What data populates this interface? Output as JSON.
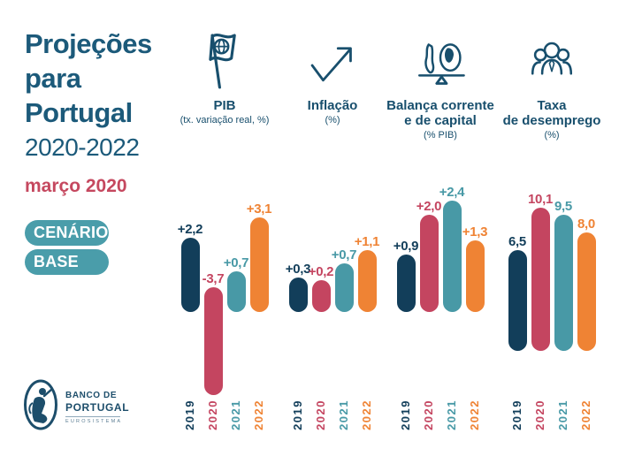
{
  "palette": {
    "navy": "#123e5a",
    "crimson": "#c44560",
    "teal": "#4899a6",
    "orange": "#ef8334",
    "title_blue": "#1c5a7a",
    "header_navy": "#184f6d",
    "accent_red": "#c5485f",
    "pill_teal": "#4a9daa",
    "logo_navy": "#1d4e6b",
    "background": "#ffffff"
  },
  "sidebar": {
    "title_lines": [
      "Projeções",
      "para",
      "Portugal"
    ],
    "period": "2020-2022",
    "date": "março 2020",
    "scenario_pills": [
      "CENÁRIO",
      "BASE"
    ],
    "logo": {
      "line1": "BANCO DE",
      "line2": "PORTUGAL",
      "line3": "EUROSISTEMA"
    }
  },
  "years": [
    "2019",
    "2020",
    "2021",
    "2022"
  ],
  "year_color_keys": [
    "navy",
    "crimson",
    "teal",
    "orange"
  ],
  "chart_data": [
    {
      "type": "bar",
      "title_lines": [
        "PIB"
      ],
      "subtitle": "(tx. variação real, %)",
      "icon": "flag-icon",
      "categories": [
        "2019",
        "2020",
        "2021",
        "2022"
      ],
      "values": [
        2.2,
        -3.7,
        0.7,
        3.1
      ],
      "display_values": [
        "+2,2",
        "-3,7",
        "+0,7",
        "+3,1"
      ]
    },
    {
      "type": "bar",
      "title_lines": [
        "Inflação"
      ],
      "subtitle": "(%)",
      "icon": "growth-arrow-icon",
      "categories": [
        "2019",
        "2020",
        "2021",
        "2022"
      ],
      "values": [
        0.3,
        0.2,
        0.7,
        1.1
      ],
      "display_values": [
        "+0,3",
        "+0,2",
        "+0,7",
        "+1,1"
      ]
    },
    {
      "type": "bar",
      "title_lines": [
        "Balança corrente",
        "e de capital"
      ],
      "subtitle": "(% PIB)",
      "icon": "balance-icon",
      "categories": [
        "2019",
        "2020",
        "2021",
        "2022"
      ],
      "values": [
        0.9,
        2.0,
        2.4,
        1.3
      ],
      "display_values": [
        "+0,9",
        "+2,0",
        "+2,4",
        "+1,3"
      ]
    },
    {
      "type": "bar",
      "title_lines": [
        "Taxa",
        "de desemprego"
      ],
      "subtitle": "(%)",
      "icon": "people-icon",
      "categories": [
        "2019",
        "2020",
        "2021",
        "2022"
      ],
      "values": [
        6.5,
        10.1,
        9.5,
        8.0
      ],
      "display_values": [
        "6,5",
        "10,1",
        "9,5",
        "8,0"
      ]
    }
  ]
}
